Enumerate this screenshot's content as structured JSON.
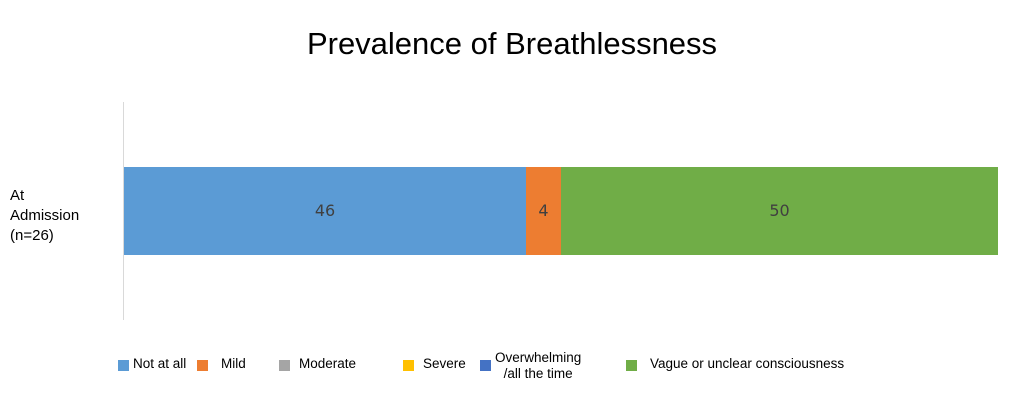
{
  "chart_data": {
    "type": "bar",
    "orientation": "horizontal",
    "stacked": true,
    "title": "Prevalence of Breathlessness",
    "categories": [
      [
        "At",
        "Admission",
        "(n=26)"
      ]
    ],
    "xlim": [
      0,
      100
    ],
    "series": [
      {
        "name": "Not at all",
        "values": [
          46
        ],
        "color": "#5B9BD5",
        "label": "46"
      },
      {
        "name": "Mild",
        "values": [
          4
        ],
        "color": "#ED7D31",
        "label": "4"
      },
      {
        "name": "Moderate",
        "values": [
          0
        ],
        "color": "#A5A5A5",
        "label": ""
      },
      {
        "name": "Severe",
        "values": [
          0
        ],
        "color": "#FFC000",
        "label": ""
      },
      {
        "name": [
          "Overwhelming",
          "/all the time"
        ],
        "values": [
          0
        ],
        "color": "#4472C4",
        "label": ""
      },
      {
        "name": "Vague or unclear consciousness",
        "values": [
          50
        ],
        "color": "#70AD47",
        "label": "50"
      }
    ],
    "legend_position": "bottom",
    "grid": false
  }
}
